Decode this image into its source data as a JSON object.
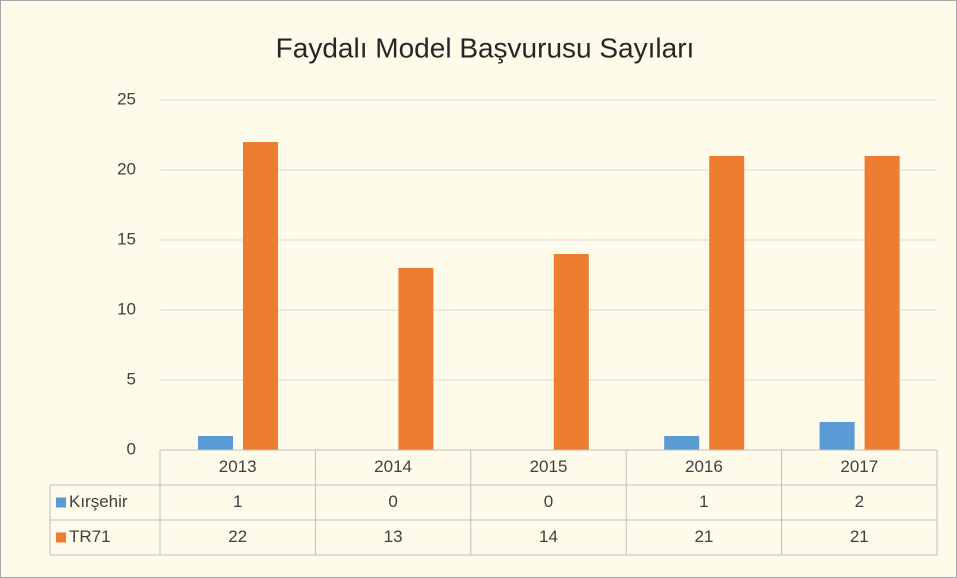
{
  "chart_data": {
    "type": "bar",
    "title": "Faydalı Model Başvurusu Sayıları",
    "categories": [
      "2013",
      "2014",
      "2015",
      "2016",
      "2017"
    ],
    "series": [
      {
        "name": "Kırşehir",
        "color": "#5b9bd5",
        "values": [
          1,
          0,
          0,
          1,
          2
        ]
      },
      {
        "name": "TR71",
        "color": "#ed7d31",
        "values": [
          22,
          13,
          14,
          21,
          21
        ]
      }
    ],
    "ylim": [
      0,
      25
    ],
    "yticks": [
      0,
      5,
      10,
      15,
      20,
      25
    ],
    "grid": true,
    "data_table": true
  }
}
